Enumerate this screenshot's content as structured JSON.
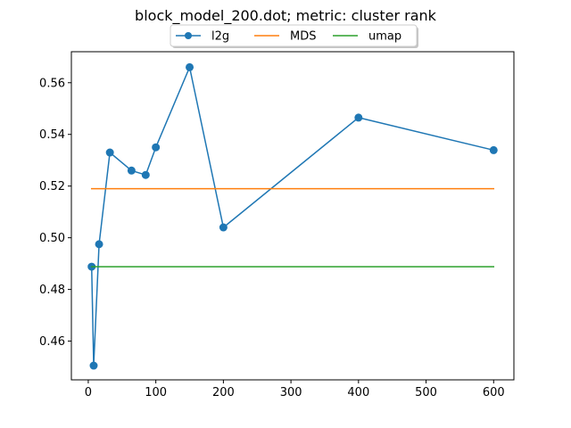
{
  "chart_data": {
    "type": "line",
    "title": "block_model_200.dot; metric: cluster rank",
    "xlabel": "",
    "ylabel": "",
    "xlim": [
      -25,
      630
    ],
    "ylim": [
      0.445,
      0.572
    ],
    "x_ticks": [
      0,
      100,
      200,
      300,
      400,
      500,
      600
    ],
    "y_ticks": [
      0.46,
      0.48,
      0.5,
      0.52,
      0.54,
      0.56
    ],
    "x_tick_labels": [
      "0",
      "100",
      "200",
      "300",
      "400",
      "500",
      "600"
    ],
    "y_tick_labels": [
      "0.46",
      "0.48",
      "0.50",
      "0.52",
      "0.54",
      "0.56"
    ],
    "grid": false,
    "legend_position": "top-center",
    "series": [
      {
        "name": "l2g",
        "color": "#1f77b4",
        "marker": "circle",
        "x": [
          5,
          8,
          16,
          32,
          64,
          85,
          100,
          150,
          200,
          400,
          600
        ],
        "y": [
          0.4888,
          0.4505,
          0.4975,
          0.533,
          0.526,
          0.5243,
          0.535,
          0.566,
          0.504,
          0.5465,
          0.5339
        ]
      },
      {
        "name": "MDS",
        "color": "#ff7f0e",
        "marker": "none",
        "x": [
          5,
          600
        ],
        "y": [
          0.519,
          0.519
        ]
      },
      {
        "name": "umap",
        "color": "#2ca02c",
        "marker": "none",
        "x": [
          5,
          600
        ],
        "y": [
          0.4888,
          0.4888
        ]
      }
    ]
  }
}
